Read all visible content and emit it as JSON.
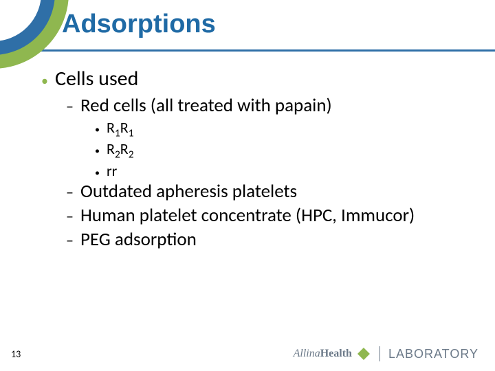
{
  "title": "Adsorptions",
  "bullets": {
    "l1_0": "Cells used",
    "l2_0": "Red cells (all treated with papain)",
    "l3_0_pre": "R",
    "l3_0_sub1": "1",
    "l3_0_mid": "R",
    "l3_0_sub2": "1",
    "l3_1_pre": "R",
    "l3_1_sub1": "2",
    "l3_1_mid": "R",
    "l3_1_sub2": "2",
    "l3_2": "rr",
    "l2_1": "Outdated apheresis platelets",
    "l2_2": "Human platelet concentrate (HPC, Immucor)",
    "l2_3": "PEG adsorption"
  },
  "page_number": "13",
  "logo": {
    "brand_a": "Allina",
    "brand_b": "Health",
    "lab": "LABORATORY"
  },
  "colors": {
    "title": "#1f6aa5",
    "underline": "#2f6fa7",
    "accent_green": "#8fb74f",
    "text": "#000000",
    "logo_gray": "#6c7a89"
  }
}
